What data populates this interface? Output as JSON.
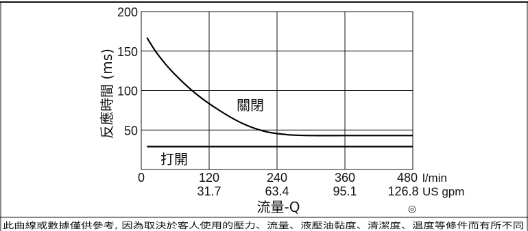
{
  "chart_data": {
    "type": "line",
    "ylabel": "反應時間 (ms)",
    "xlabel": "流量-Q",
    "y_ticks": [
      "200",
      "150",
      "100",
      "50"
    ],
    "ylim": [
      0,
      200
    ],
    "xlim": [
      0,
      480
    ],
    "x_ticks_lmin": [
      "0",
      "120",
      "240",
      "360",
      "480"
    ],
    "x_unit_lmin": "l/min",
    "x_ticks_gpm": [
      "31.7",
      "63.4",
      "95.1",
      "126.8"
    ],
    "x_unit_gpm": "US gpm",
    "grid": true,
    "series": [
      {
        "name": "關閉",
        "x": [
          10,
          30,
          60,
          100,
          140,
          180,
          220,
          260,
          300,
          360,
          420,
          480
        ],
        "y": [
          167,
          145,
          120,
          94,
          74,
          58,
          48,
          44,
          43,
          43,
          43,
          43
        ]
      },
      {
        "name": "打開",
        "x": [
          10,
          480
        ],
        "y": [
          29,
          29
        ]
      }
    ]
  },
  "symbol": "◎",
  "footnote": "此曲線或數據僅供參考, 因為取決於客人使用的壓力、流量、液壓油黏度、清潔度、溫度等條件而有所不同"
}
